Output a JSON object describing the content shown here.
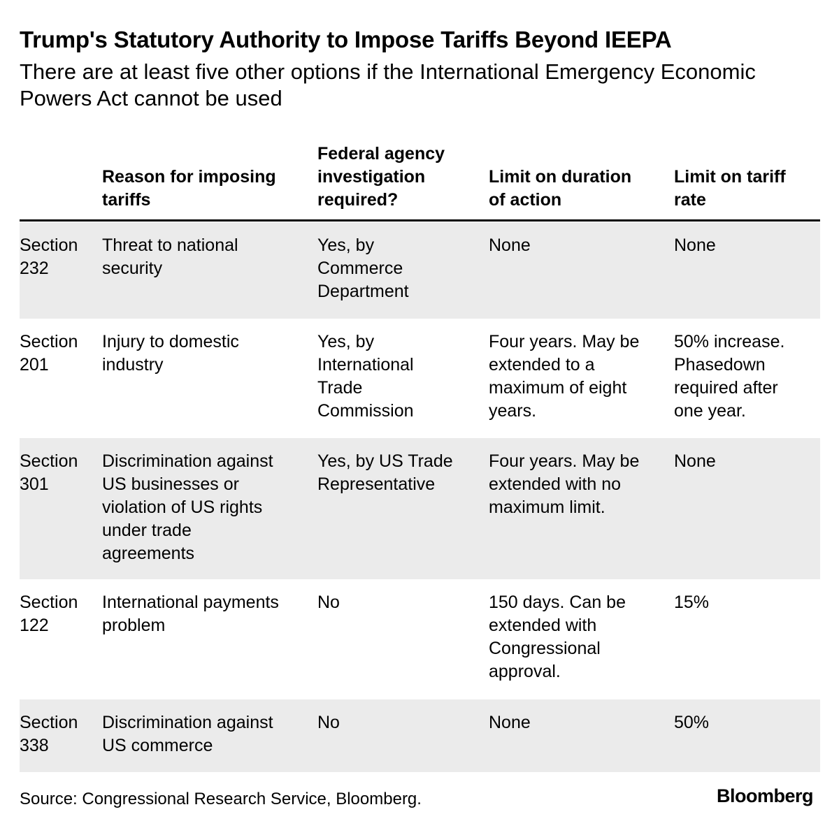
{
  "title": "Trump's Statutory Authority to Impose Tariffs Beyond IEEPA",
  "subtitle": "There are at least five other options if the International Emergency Economic Powers Act cannot be used",
  "chart_data": {
    "type": "table",
    "columns": [
      "",
      "Reason for imposing\ntariffs",
      "Federal agency\ninvestigation\nrequired?",
      "Limit on duration\nof action",
      "Limit on tariff\nrate"
    ],
    "rows": [
      {
        "section": "Section\n232",
        "reason": "Threat to national\nsecurity",
        "investigation": "Yes, by\nCommerce\nDepartment",
        "duration": "None",
        "rate": "None"
      },
      {
        "section": "Section\n201",
        "reason": "Injury to domestic\nindustry",
        "investigation": "Yes, by\nInternational\nTrade\nCommission",
        "duration": "Four years. May be\nextended to a\nmaximum of eight\nyears.",
        "rate": "50% increase.\nPhasedown\nrequired after\none year."
      },
      {
        "section": "Section\n301",
        "reason": "Discrimination against\nUS businesses or\nviolation of US rights\nunder trade\nagreements",
        "investigation": "Yes, by US Trade\nRepresentative",
        "duration": "Four years. May be\nextended with no\nmaximum limit.",
        "rate": "None"
      },
      {
        "section": "Section\n122",
        "reason": "International payments\nproblem",
        "investigation": "No",
        "duration": "150 days. Can be\nextended with\nCongressional\napproval.",
        "rate": "15%"
      },
      {
        "section": "Section\n338",
        "reason": "Discrimination against\nUS commerce",
        "investigation": "No",
        "duration": "None",
        "rate": "50%"
      }
    ]
  },
  "source": "Source: Congressional Research Service, Bloomberg.",
  "brand": "Bloomberg",
  "colors": {
    "row_shade": "#ebebeb",
    "rule": "#000000"
  }
}
